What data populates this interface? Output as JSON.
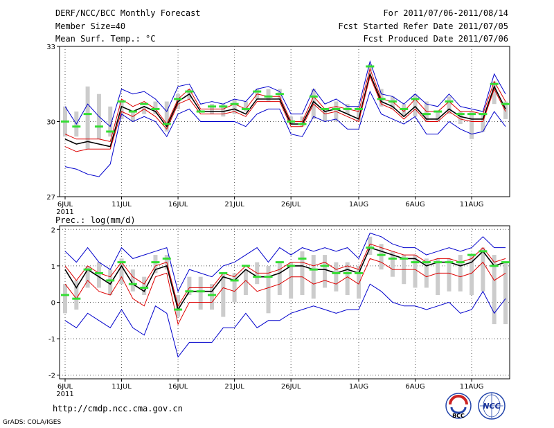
{
  "header": {
    "title": "DERF/NCC/BCC Monthly Forecast",
    "member_size": "Member Size=40",
    "variable": "Mean Surf. Temp.: °C",
    "forecast_period": "For 2011/07/06-2011/08/14",
    "started_refer": "Fcst Started Refer Date 2011/07/05",
    "produced": "Fcst Produced Date 2011/07/06"
  },
  "footer": {
    "url": "http://cmdp.ncc.cma.gov.cn",
    "credit": "GrADS: COLA/IGES",
    "logo_left_text": "BCC",
    "logo_right_text": "NCC"
  },
  "colors": {
    "median": "#000000",
    "spread": "#dd0000",
    "extreme": "#0000cc",
    "member_mean": "#33dd33",
    "range_bar": "#cccccc",
    "grid": "#555555"
  },
  "chart_data": [
    {
      "type": "line",
      "panel": "temperature",
      "title": "Mean Surf. Temp.: °C",
      "ylim": [
        27,
        33
      ],
      "yticks": [
        "27",
        "30",
        "33"
      ],
      "ytick_values": [
        27,
        30,
        33
      ],
      "xticks": [
        "6JUL",
        "11JUL",
        "16JUL",
        "21JUL",
        "26JUL",
        "1AUG",
        "6AUG",
        "11AUG"
      ],
      "xtick_days": [
        1,
        6,
        11,
        16,
        21,
        27,
        32,
        37
      ],
      "year_label": "2011",
      "days": [
        1,
        2,
        3,
        4,
        5,
        6,
        7,
        8,
        9,
        10,
        11,
        12,
        13,
        14,
        15,
        16,
        17,
        18,
        19,
        20,
        21,
        22,
        23,
        24,
        25,
        26,
        27,
        28,
        29,
        30,
        31,
        32,
        33,
        34,
        35,
        36,
        37,
        38,
        39,
        40
      ],
      "bar_low": [
        29.4,
        29.4,
        28.9,
        29.3,
        29.4,
        30.1,
        30.0,
        30.3,
        30.3,
        29.6,
        30.5,
        30.9,
        30.7,
        30.3,
        30.2,
        30.3,
        30.4,
        30.9,
        30.8,
        30.9,
        29.9,
        29.8,
        30.1,
        30.0,
        30.0,
        30.3,
        30.0,
        32.0,
        30.6,
        30.5,
        30.2,
        30.2,
        30.0,
        30.0,
        30.3,
        29.9,
        29.3,
        29.6,
        30.7,
        30.1
      ],
      "bar_high": [
        30.6,
        30.4,
        31.4,
        31.1,
        30.6,
        30.8,
        30.4,
        30.6,
        30.8,
        30.8,
        31.1,
        31.3,
        30.7,
        30.7,
        30.7,
        30.9,
        30.8,
        31.3,
        31.3,
        31.3,
        30.2,
        30.2,
        31.3,
        30.5,
        30.8,
        30.7,
        30.6,
        32.3,
        31.3,
        31.0,
        30.7,
        31.1,
        30.8,
        30.4,
        31.0,
        30.4,
        30.4,
        30.3,
        31.6,
        30.8
      ],
      "series": [
        {
          "name": "max",
          "color_key": "extreme",
          "values": [
            30.6,
            29.9,
            30.7,
            30.2,
            29.8,
            31.3,
            31.1,
            31.2,
            30.9,
            30.4,
            31.4,
            31.5,
            30.7,
            30.8,
            30.7,
            30.9,
            30.8,
            31.3,
            31.4,
            31.2,
            30.3,
            30.3,
            31.3,
            30.7,
            30.9,
            30.6,
            30.6,
            32.4,
            31.1,
            31.0,
            30.7,
            31.1,
            30.7,
            30.6,
            31.1,
            30.6,
            30.5,
            30.4,
            31.9,
            31.1
          ]
        },
        {
          "name": "upper",
          "color_key": "spread",
          "values": [
            29.5,
            29.3,
            29.3,
            29.3,
            29.2,
            30.9,
            30.6,
            30.8,
            30.5,
            29.9,
            30.9,
            31.3,
            30.5,
            30.5,
            30.5,
            30.7,
            30.5,
            31.1,
            31.0,
            31.0,
            30.0,
            30.0,
            31.0,
            30.5,
            30.6,
            30.5,
            30.4,
            32.1,
            30.9,
            30.8,
            30.4,
            30.9,
            30.4,
            30.4,
            30.8,
            30.4,
            30.4,
            30.3,
            31.6,
            30.8
          ]
        },
        {
          "name": "median",
          "color_key": "median",
          "values": [
            29.3,
            29.1,
            29.2,
            29.1,
            29.0,
            30.6,
            30.4,
            30.6,
            30.4,
            29.8,
            30.8,
            31.1,
            30.4,
            30.4,
            30.4,
            30.5,
            30.3,
            30.9,
            30.9,
            30.9,
            29.9,
            29.9,
            30.8,
            30.4,
            30.5,
            30.3,
            30.1,
            31.9,
            30.8,
            30.6,
            30.2,
            30.6,
            30.1,
            30.1,
            30.5,
            30.2,
            30.1,
            30.1,
            31.4,
            30.5
          ]
        },
        {
          "name": "lower",
          "color_key": "spread",
          "values": [
            29.0,
            28.8,
            28.9,
            28.9,
            28.9,
            30.4,
            30.2,
            30.5,
            30.2,
            29.7,
            30.7,
            30.9,
            30.3,
            30.3,
            30.3,
            30.4,
            30.2,
            30.8,
            30.8,
            30.8,
            29.8,
            29.8,
            30.7,
            30.3,
            30.4,
            30.2,
            30.0,
            31.8,
            30.7,
            30.5,
            30.1,
            30.5,
            30.0,
            30.0,
            30.4,
            30.1,
            30.0,
            30.0,
            31.3,
            30.4
          ]
        },
        {
          "name": "min",
          "color_key": "extreme",
          "values": [
            28.2,
            28.1,
            27.9,
            27.8,
            28.3,
            30.3,
            30.0,
            30.2,
            30.0,
            29.4,
            30.3,
            30.5,
            30.0,
            30.0,
            30.0,
            30.0,
            29.8,
            30.3,
            30.5,
            30.5,
            29.5,
            29.4,
            30.2,
            30.0,
            30.1,
            29.7,
            29.7,
            31.2,
            30.3,
            30.1,
            29.9,
            30.2,
            29.5,
            29.5,
            30.0,
            29.7,
            29.5,
            29.6,
            30.4,
            29.8
          ]
        },
        {
          "name": "member_mean",
          "color_key": "member_mean",
          "values": [
            30.0,
            29.8,
            30.3,
            29.8,
            29.6,
            30.8,
            30.4,
            30.7,
            30.5,
            29.9,
            30.9,
            31.2,
            30.4,
            30.6,
            30.6,
            30.7,
            30.5,
            31.2,
            31.0,
            31.1,
            30.0,
            29.9,
            31.0,
            30.5,
            30.5,
            30.5,
            30.5,
            32.2,
            30.9,
            30.8,
            30.5,
            30.9,
            30.3,
            30.4,
            30.8,
            30.3,
            30.3,
            30.3,
            31.5,
            30.7
          ]
        }
      ]
    },
    {
      "type": "line",
      "panel": "precipitation",
      "title": "Prec.: log(mm/d)",
      "ylim": [
        -2.1,
        2.1
      ],
      "yticks": [
        "-2",
        "-1",
        "0",
        "1",
        "2"
      ],
      "ytick_values": [
        -2,
        -1,
        0,
        1,
        2
      ],
      "xticks": [
        "6JUL",
        "11JUL",
        "16JUL",
        "21JUL",
        "26JUL",
        "1AUG",
        "6AUG",
        "11AUG"
      ],
      "xtick_days": [
        1,
        6,
        11,
        16,
        21,
        27,
        32,
        37
      ],
      "year_label": "2011",
      "days": [
        1,
        2,
        3,
        4,
        5,
        6,
        7,
        8,
        9,
        10,
        11,
        12,
        13,
        14,
        15,
        16,
        17,
        18,
        19,
        20,
        21,
        22,
        23,
        24,
        25,
        26,
        27,
        28,
        29,
        30,
        31,
        32,
        33,
        34,
        35,
        36,
        37,
        38,
        39,
        40
      ],
      "bar_low": [
        -0.3,
        -0.2,
        0.4,
        0.4,
        0.2,
        0.5,
        0.3,
        0.2,
        0.8,
        0.9,
        -0.4,
        0.2,
        -0.2,
        -0.2,
        -0.4,
        0.0,
        0.2,
        0.5,
        -0.3,
        0.2,
        0.1,
        0.2,
        0.1,
        0.4,
        0.3,
        0.2,
        0.1,
        1.3,
        0.9,
        0.7,
        0.5,
        0.4,
        0.4,
        0.2,
        0.3,
        0.3,
        0.2,
        0.3,
        -0.6,
        -0.6
      ],
      "bar_high": [
        0.5,
        0.6,
        1.0,
        1.1,
        0.9,
        1.2,
        0.9,
        0.7,
        1.3,
        1.3,
        0.2,
        0.7,
        0.7,
        0.5,
        0.8,
        0.8,
        0.9,
        1.1,
        1.0,
        1.1,
        1.1,
        1.4,
        1.3,
        1.3,
        1.1,
        1.1,
        1.0,
        1.8,
        1.6,
        1.4,
        1.3,
        1.3,
        1.2,
        1.2,
        1.2,
        1.3,
        1.3,
        1.5,
        1.3,
        1.1
      ],
      "series": [
        {
          "name": "max",
          "color_key": "extreme",
          "values": [
            1.4,
            1.1,
            1.5,
            1.1,
            0.9,
            1.5,
            1.2,
            1.3,
            1.4,
            1.5,
            0.3,
            0.9,
            0.8,
            0.7,
            1.0,
            1.1,
            1.3,
            1.5,
            1.1,
            1.5,
            1.3,
            1.5,
            1.4,
            1.5,
            1.4,
            1.5,
            1.2,
            1.9,
            1.8,
            1.6,
            1.5,
            1.5,
            1.3,
            1.4,
            1.5,
            1.4,
            1.5,
            1.8,
            1.5,
            1.5
          ]
        },
        {
          "name": "upper",
          "color_key": "spread",
          "values": [
            1.0,
            0.6,
            1.0,
            0.8,
            0.7,
            1.1,
            0.7,
            0.5,
            1.0,
            1.1,
            -0.1,
            0.4,
            0.4,
            0.4,
            0.8,
            0.7,
            1.0,
            0.8,
            0.8,
            0.9,
            1.1,
            1.1,
            1.0,
            1.1,
            0.9,
            1.0,
            0.9,
            1.6,
            1.5,
            1.4,
            1.3,
            1.3,
            1.1,
            1.2,
            1.2,
            1.1,
            1.2,
            1.5,
            1.1,
            1.2
          ]
        },
        {
          "name": "median",
          "color_key": "median",
          "values": [
            0.9,
            0.4,
            0.9,
            0.7,
            0.5,
            1.0,
            0.5,
            0.3,
            0.9,
            1.0,
            -0.2,
            0.3,
            0.3,
            0.3,
            0.7,
            0.6,
            0.9,
            0.7,
            0.7,
            0.8,
            1.0,
            1.0,
            0.9,
            0.9,
            0.8,
            0.9,
            0.8,
            1.5,
            1.4,
            1.3,
            1.2,
            1.2,
            1.0,
            1.1,
            1.1,
            1.0,
            1.1,
            1.4,
            1.0,
            1.1
          ]
        },
        {
          "name": "lower",
          "color_key": "spread",
          "values": [
            0.5,
            0.1,
            0.6,
            0.3,
            0.2,
            0.7,
            0.1,
            -0.1,
            0.7,
            0.8,
            -0.6,
            0.0,
            0.0,
            0.0,
            0.4,
            0.3,
            0.6,
            0.3,
            0.4,
            0.5,
            0.7,
            0.7,
            0.5,
            0.6,
            0.5,
            0.7,
            0.5,
            1.2,
            1.1,
            0.9,
            0.9,
            0.9,
            0.7,
            0.8,
            0.8,
            0.7,
            0.8,
            1.1,
            0.6,
            0.8
          ]
        },
        {
          "name": "min",
          "color_key": "extreme",
          "values": [
            -0.5,
            -0.7,
            -0.3,
            -0.5,
            -0.7,
            -0.2,
            -0.7,
            -0.9,
            -0.1,
            -0.3,
            -1.5,
            -1.1,
            -1.1,
            -1.1,
            -0.7,
            -0.7,
            -0.3,
            -0.7,
            -0.5,
            -0.5,
            -0.3,
            -0.2,
            -0.1,
            -0.2,
            -0.3,
            -0.2,
            -0.2,
            0.5,
            0.3,
            0.0,
            -0.1,
            -0.1,
            -0.2,
            -0.1,
            0.0,
            -0.3,
            -0.2,
            0.3,
            -0.3,
            0.1
          ]
        },
        {
          "name": "member_mean",
          "color_key": "member_mean",
          "values": [
            0.2,
            0.1,
            0.9,
            0.8,
            0.6,
            1.1,
            0.5,
            0.4,
            1.1,
            1.2,
            -0.2,
            0.3,
            0.3,
            0.2,
            0.8,
            0.6,
            1.0,
            0.7,
            0.7,
            1.1,
            1.0,
            1.2,
            0.9,
            1.0,
            0.8,
            0.8,
            0.8,
            1.5,
            1.3,
            1.2,
            1.2,
            1.1,
            1.1,
            1.1,
            1.1,
            1.1,
            1.3,
            1.4,
            1.0,
            1.1
          ]
        }
      ]
    }
  ]
}
